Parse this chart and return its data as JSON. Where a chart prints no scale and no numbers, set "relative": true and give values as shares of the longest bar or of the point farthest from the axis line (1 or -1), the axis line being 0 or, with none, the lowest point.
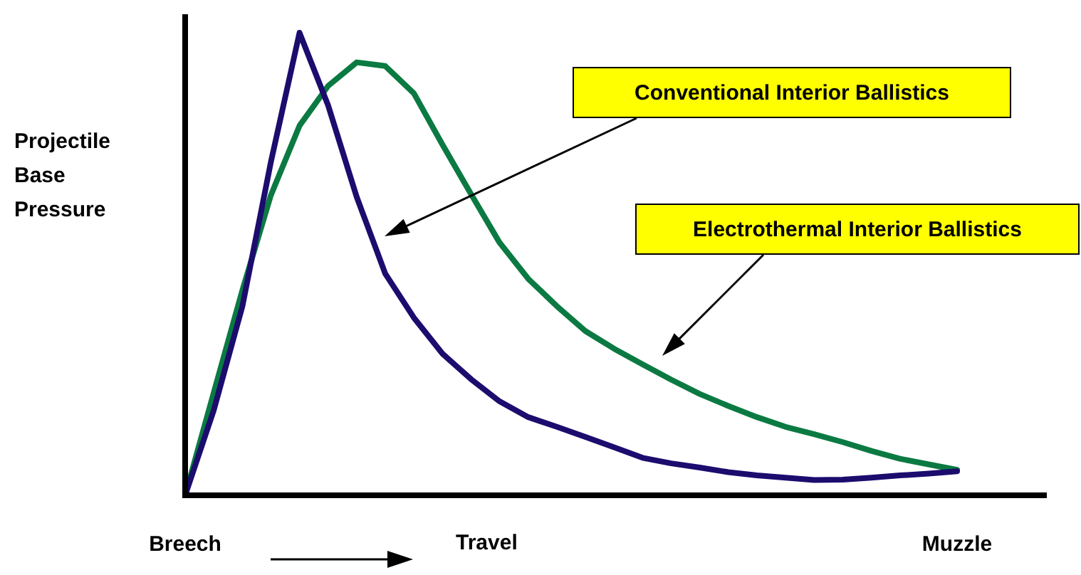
{
  "chart_data": {
    "type": "line",
    "relative": true,
    "ylabel": "Projectile Base Pressure",
    "xlabel": "Travel",
    "legend": false,
    "marker": "none",
    "line_style": "solid",
    "categories": [
      "Breech",
      null,
      null,
      null,
      null,
      null,
      null,
      null,
      null,
      null,
      null,
      null,
      null,
      null,
      null,
      null,
      null,
      null,
      null,
      null,
      null,
      null,
      null,
      null,
      null,
      null,
      null,
      "Muzzle"
    ],
    "series": [
      {
        "color": "#1c0c6e",
        "values": [
          0,
          0.184,
          0.408,
          0.721,
          1,
          0.843,
          0.645,
          0.479,
          0.384,
          0.306,
          0.251,
          0.203,
          0.169,
          0.148,
          0.126,
          0.104,
          0.081,
          0.069,
          0.06,
          0.05,
          0.043,
          0.038,
          0.033,
          0.034,
          0.038,
          0.043,
          0.047,
          0.052
        ]
      },
      {
        "color": "#0b7a42",
        "values": [
          0,
          0.222,
          0.443,
          0.649,
          0.799,
          0.885,
          0.936,
          0.928,
          0.869,
          0.758,
          0.651,
          0.546,
          0.468,
          0.409,
          0.355,
          0.317,
          0.283,
          0.25,
          0.219,
          0.193,
          0.169,
          0.148,
          0.132,
          0.115,
          0.096,
          0.079,
          0.067,
          0.055
        ]
      }
    ],
    "annotations": [
      "Conventional Interior Ballistics",
      "Electrothermal Interior Ballistics"
    ]
  }
}
